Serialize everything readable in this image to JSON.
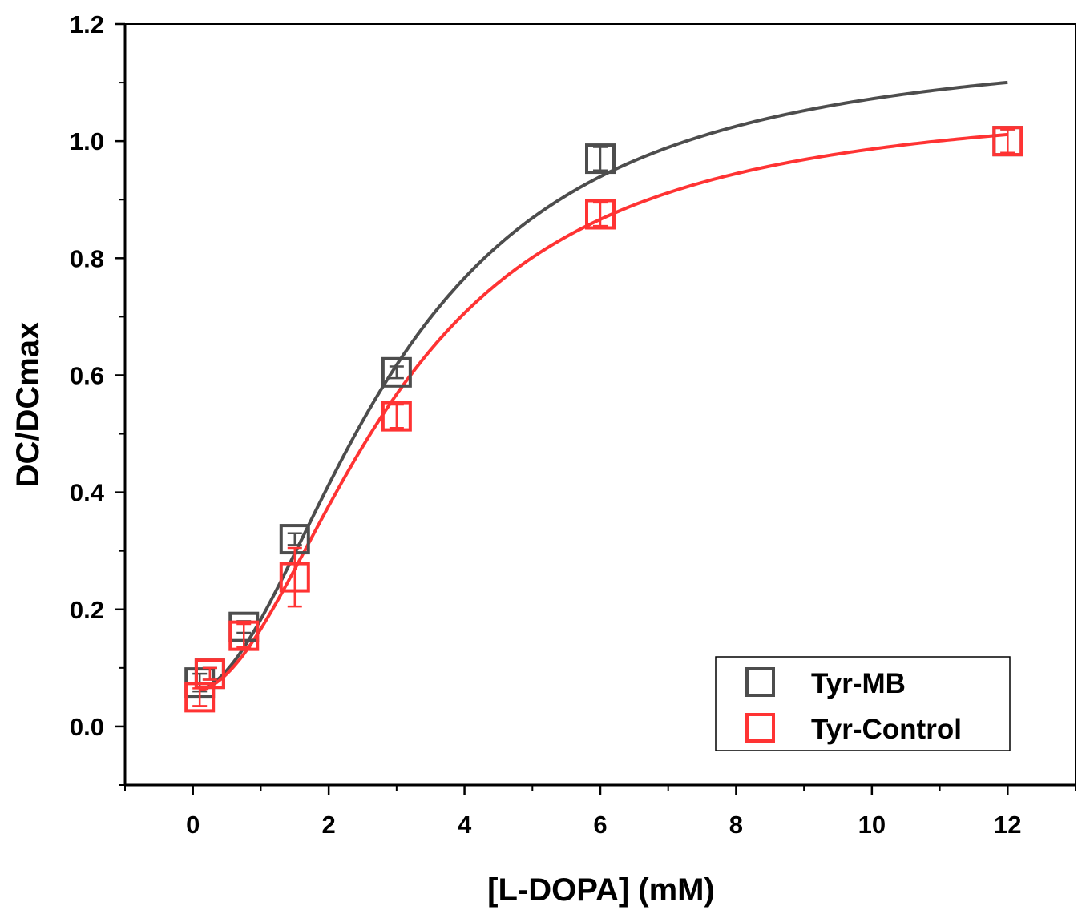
{
  "chart_data": {
    "type": "scatter",
    "title": "",
    "xlabel": "[L-DOPA] (mM)",
    "ylabel": "DC/DCmax",
    "xlim": [
      -1,
      13
    ],
    "ylim": [
      -0.1,
      1.2
    ],
    "x_ticks": [
      0,
      2,
      4,
      6,
      8,
      10,
      12
    ],
    "x_tick_labels": [
      "0",
      "2",
      "4",
      "6",
      "8",
      "10",
      "12"
    ],
    "y_ticks": [
      0.0,
      0.2,
      0.4,
      0.6,
      0.8,
      1.0,
      1.2
    ],
    "y_tick_labels": [
      "0.0",
      "0.2",
      "0.4",
      "0.6",
      "0.8",
      "1.0",
      "1.2"
    ],
    "grid": false,
    "legend_position": "bottom-right",
    "series": [
      {
        "name": "Tyr-MB",
        "color": "#4d4d4d",
        "marker": "open-square",
        "x": [
          0.1,
          0.25,
          0.75,
          1.5,
          3,
          6,
          12
        ],
        "y": [
          0.075,
          0.09,
          0.17,
          0.32,
          0.605,
          0.97,
          1.0
        ],
        "error": [
          0.015,
          0.01,
          0.01,
          0.01,
          0.01,
          0.02,
          0.02
        ],
        "fit": {
          "model": "hill",
          "vmax": 1.175,
          "k": 3.0,
          "n": 1.9,
          "y0": 0.06,
          "x_range": [
            0.1,
            12
          ]
        }
      },
      {
        "name": "Tyr-Control",
        "color": "#ff3333",
        "marker": "open-square",
        "x": [
          0.1,
          0.25,
          0.75,
          1.5,
          3,
          6,
          12
        ],
        "y": [
          0.05,
          0.09,
          0.155,
          0.255,
          0.53,
          0.875,
          1.0
        ],
        "error": [
          0.015,
          0.01,
          0.02,
          0.05,
          0.02,
          0.02,
          0.02
        ],
        "fit": {
          "model": "hill",
          "vmax": 1.075,
          "k": 3.0,
          "n": 1.95,
          "y0": 0.06,
          "x_range": [
            0.1,
            12
          ]
        }
      }
    ]
  }
}
